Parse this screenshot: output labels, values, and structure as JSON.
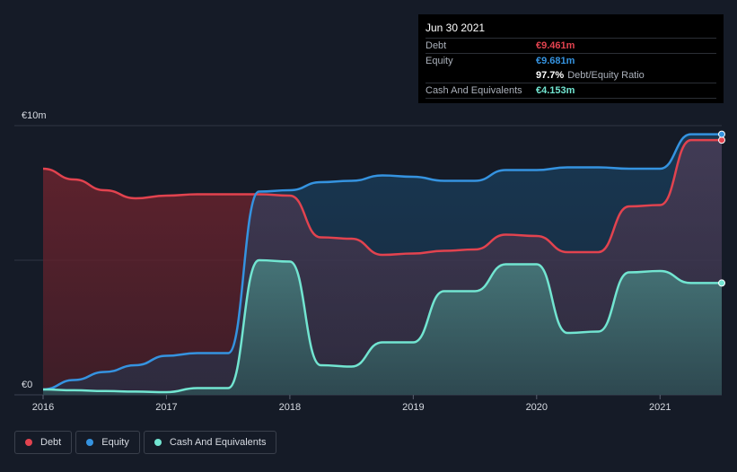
{
  "chart_data": {
    "type": "area",
    "title": "",
    "xlabel": "",
    "ylabel": "",
    "ylim": [
      0,
      10
    ],
    "y_unit": "€m",
    "y_tick_labels": [
      {
        "value": 10,
        "label": "€10m"
      },
      {
        "value": 0,
        "label": "€0"
      }
    ],
    "x_ticks": [
      2016,
      2017,
      2018,
      2019,
      2020,
      2021
    ],
    "x_range": [
      2016,
      2021.5
    ],
    "series": [
      {
        "name": "Debt",
        "color": "#e2434f",
        "points": [
          [
            2016.0,
            8.4
          ],
          [
            2016.25,
            8.0
          ],
          [
            2016.5,
            7.6
          ],
          [
            2016.75,
            7.3
          ],
          [
            2017.0,
            7.4
          ],
          [
            2017.25,
            7.45
          ],
          [
            2017.5,
            7.45
          ],
          [
            2017.75,
            7.45
          ],
          [
            2018.0,
            7.4
          ],
          [
            2018.25,
            5.85
          ],
          [
            2018.5,
            5.8
          ],
          [
            2018.75,
            5.2
          ],
          [
            2019.0,
            5.25
          ],
          [
            2019.25,
            5.35
          ],
          [
            2019.5,
            5.4
          ],
          [
            2019.75,
            5.95
          ],
          [
            2020.0,
            5.9
          ],
          [
            2020.25,
            5.3
          ],
          [
            2020.5,
            5.3
          ],
          [
            2020.75,
            7.0
          ],
          [
            2021.0,
            7.05
          ],
          [
            2021.25,
            9.461
          ],
          [
            2021.5,
            9.461
          ]
        ]
      },
      {
        "name": "Equity",
        "color": "#3593e0",
        "points": [
          [
            2016.0,
            0.2
          ],
          [
            2016.25,
            0.55
          ],
          [
            2016.5,
            0.85
          ],
          [
            2016.75,
            1.1
          ],
          [
            2017.0,
            1.45
          ],
          [
            2017.25,
            1.55
          ],
          [
            2017.5,
            1.55
          ],
          [
            2017.75,
            7.55
          ],
          [
            2018.0,
            7.6
          ],
          [
            2018.25,
            7.9
          ],
          [
            2018.5,
            7.95
          ],
          [
            2018.75,
            8.15
          ],
          [
            2019.0,
            8.1
          ],
          [
            2019.25,
            7.95
          ],
          [
            2019.5,
            7.95
          ],
          [
            2019.75,
            8.35
          ],
          [
            2020.0,
            8.35
          ],
          [
            2020.25,
            8.45
          ],
          [
            2020.5,
            8.45
          ],
          [
            2020.75,
            8.4
          ],
          [
            2021.0,
            8.4
          ],
          [
            2021.25,
            9.681
          ],
          [
            2021.5,
            9.681
          ]
        ]
      },
      {
        "name": "Cash And Equivalents",
        "color": "#72e5d1",
        "points": [
          [
            2016.0,
            0.2
          ],
          [
            2016.25,
            0.17
          ],
          [
            2016.5,
            0.14
          ],
          [
            2016.75,
            0.12
          ],
          [
            2017.0,
            0.1
          ],
          [
            2017.25,
            0.25
          ],
          [
            2017.5,
            0.25
          ],
          [
            2017.75,
            5.0
          ],
          [
            2018.0,
            4.95
          ],
          [
            2018.25,
            1.1
          ],
          [
            2018.5,
            1.05
          ],
          [
            2018.75,
            1.95
          ],
          [
            2019.0,
            1.95
          ],
          [
            2019.25,
            3.85
          ],
          [
            2019.5,
            3.85
          ],
          [
            2019.75,
            4.85
          ],
          [
            2020.0,
            4.85
          ],
          [
            2020.25,
            2.3
          ],
          [
            2020.5,
            2.35
          ],
          [
            2020.75,
            4.55
          ],
          [
            2021.0,
            4.6
          ],
          [
            2021.25,
            4.153
          ],
          [
            2021.5,
            4.153
          ]
        ]
      }
    ]
  },
  "tooltip": {
    "date": "Jun 30 2021",
    "rows": [
      {
        "label": "Debt",
        "value": "€9.461m",
        "color": "#e2434f"
      },
      {
        "label": "Equity",
        "value": "€9.681m",
        "color": "#3593e0"
      },
      {
        "label": "",
        "value": "97.7%",
        "extra": "Debt/Equity Ratio",
        "color": "#ffffff"
      },
      {
        "label": "Cash And Equivalents",
        "value": "€4.153m",
        "color": "#72e5d1"
      }
    ]
  },
  "legend": [
    {
      "label": "Debt",
      "color": "#e2434f"
    },
    {
      "label": "Equity",
      "color": "#3593e0"
    },
    {
      "label": "Cash And Equivalents",
      "color": "#72e5d1"
    }
  ]
}
